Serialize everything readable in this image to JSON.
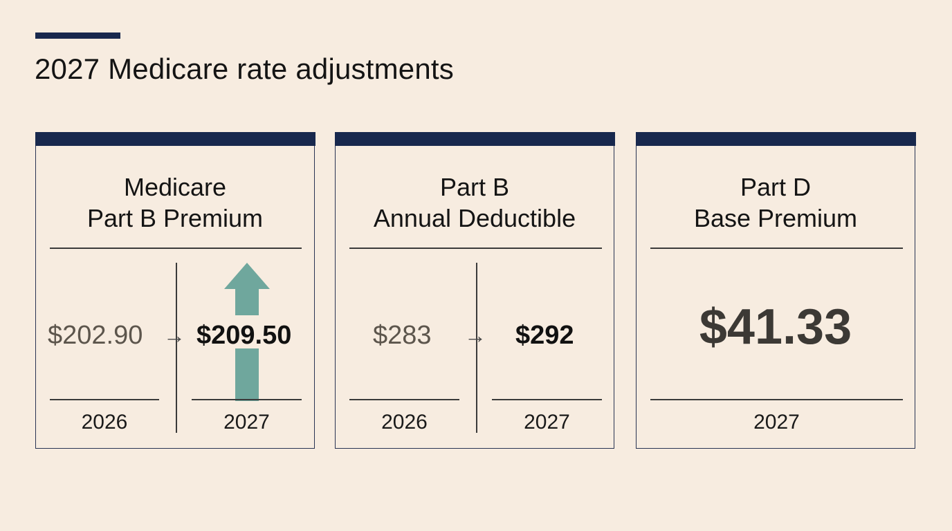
{
  "page": {
    "title": "2027 Medicare rate adjustments"
  },
  "colors": {
    "background": "#f7ece0",
    "navy": "#18284d",
    "teal_arrow": "#6fa79d"
  },
  "cards": [
    {
      "title_line1": "Medicare",
      "title_line2": "Part B Premium",
      "old_value": "$202.90",
      "new_value": "$209.50",
      "arrow": "→",
      "trend_icon": "up-arrow-icon",
      "year_old": "2026",
      "year_new": "2027"
    },
    {
      "title_line1": "Part B",
      "title_line2": "Annual Deductible",
      "old_value": "$283",
      "new_value": "$292",
      "arrow": "→",
      "year_old": "2026",
      "year_new": "2027"
    },
    {
      "title_line1": "Part D",
      "title_line2": "Base Premium",
      "value": "$41.33",
      "year": "2027"
    }
  ]
}
